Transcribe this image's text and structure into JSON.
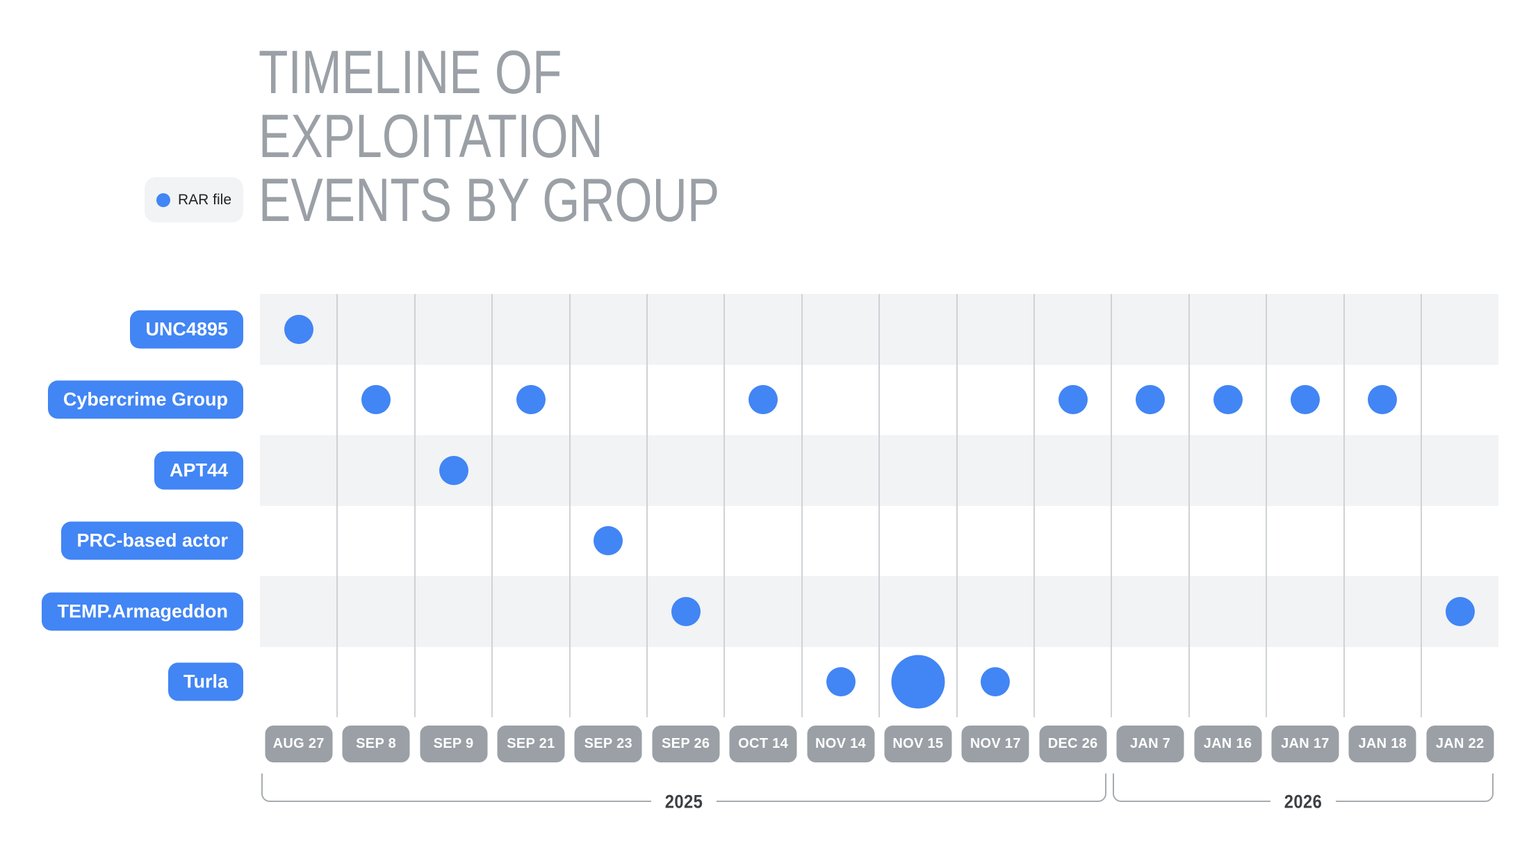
{
  "header": {
    "title_lines": [
      "TIMELINE OF",
      "EXPLOITATION",
      "EVENTS BY GROUP"
    ]
  },
  "legend": {
    "label": "RAR file",
    "marker_color": "#4285F4"
  },
  "colors": {
    "accent_blue": "#4285F4",
    "row_stripe": "#F1F3F4",
    "date_label_bg": "#9AA0A6",
    "title_text": "#9AA0A6",
    "year_text": "#3C4043",
    "gridline": "#CFD2D6",
    "bracket_line": "#A6ABB0"
  },
  "chart_data": {
    "type": "scatter",
    "title": "TIMELINE OF EXPLOITATION EVENTS BY GROUP",
    "legend_entries": [
      "RAR file"
    ],
    "x_categories": [
      "AUG 27",
      "SEP 8",
      "SEP 9",
      "SEP 21",
      "SEP 23",
      "SEP 26",
      "OCT 14",
      "NOV 14",
      "NOV 15",
      "NOV 17",
      "DEC 26",
      "JAN 7",
      "JAN 16",
      "JAN 17",
      "JAN 18",
      "JAN 22"
    ],
    "y_categories": [
      "UNC4895",
      "Cybercrime Group",
      "APT44",
      "PRC-based actor",
      "TEMP.Armageddon",
      "Turla"
    ],
    "year_groups": [
      {
        "label": "2025",
        "from_index": 0,
        "to_index": 10
      },
      {
        "label": "2026",
        "from_index": 11,
        "to_index": 15
      }
    ],
    "series": [
      {
        "name": "RAR file",
        "color": "#4285F4",
        "marker": "circle",
        "points": [
          {
            "y": "UNC4895",
            "x": "AUG 27",
            "size": "normal"
          },
          {
            "y": "Cybercrime Group",
            "x": "SEP 8",
            "size": "normal"
          },
          {
            "y": "Cybercrime Group",
            "x": "SEP 21",
            "size": "normal"
          },
          {
            "y": "Cybercrime Group",
            "x": "OCT 14",
            "size": "normal"
          },
          {
            "y": "Cybercrime Group",
            "x": "DEC 26",
            "size": "normal"
          },
          {
            "y": "Cybercrime Group",
            "x": "JAN 7",
            "size": "normal"
          },
          {
            "y": "Cybercrime Group",
            "x": "JAN 16",
            "size": "normal"
          },
          {
            "y": "Cybercrime Group",
            "x": "JAN 17",
            "size": "normal"
          },
          {
            "y": "Cybercrime Group",
            "x": "JAN 18",
            "size": "normal"
          },
          {
            "y": "APT44",
            "x": "SEP 9",
            "size": "normal"
          },
          {
            "y": "PRC-based actor",
            "x": "SEP 23",
            "size": "normal"
          },
          {
            "y": "TEMP.Armageddon",
            "x": "SEP 26",
            "size": "normal"
          },
          {
            "y": "TEMP.Armageddon",
            "x": "JAN 22",
            "size": "normal"
          },
          {
            "y": "Turla",
            "x": "NOV 14",
            "size": "normal"
          },
          {
            "y": "Turla",
            "x": "NOV 15",
            "size": "large"
          },
          {
            "y": "Turla",
            "x": "NOV 17",
            "size": "normal"
          }
        ]
      }
    ],
    "layout_hints": {
      "row_striping": "alternate",
      "gridlines": "vertical",
      "x_axis_position": "bottom",
      "legend_position": "top-left"
    }
  }
}
